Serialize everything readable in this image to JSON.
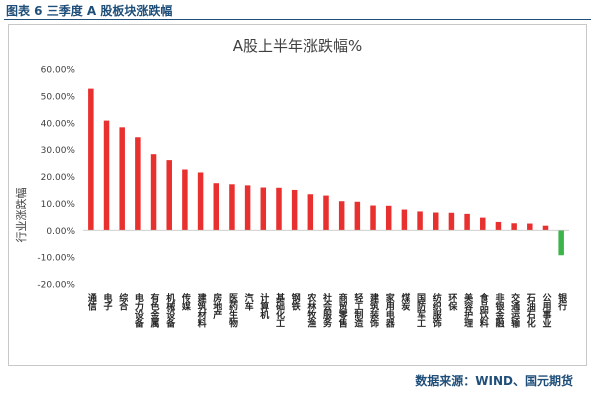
{
  "caption": "图表 6 三季度 A 股板块涨跌幅",
  "source": "数据来源：WIND、国元期货",
  "colors": {
    "positive": "#e8312f",
    "negative": "#3cb44b",
    "caption": "#1f4e79"
  },
  "chart_data": {
    "type": "bar",
    "title": "A股上半年涨跌幅%",
    "xlabel": "",
    "ylabel": "行业涨跌幅",
    "ylim": [
      -20,
      60
    ],
    "yticks": [
      60,
      50,
      40,
      30,
      20,
      10,
      0,
      -10,
      -20
    ],
    "yticks_labels": [
      "60.00%",
      "50.00%",
      "40.00%",
      "30.00%",
      "20.00%",
      "10.00%",
      "0.00%",
      "-10.00%",
      "-20.00%"
    ],
    "grid": false,
    "legend": "none",
    "categories": [
      "通信",
      "电子",
      "综合",
      "电力设备",
      "有色金属",
      "机械设备",
      "传媒",
      "建筑材料",
      "房地产",
      "医药生物",
      "汽车",
      "计算机",
      "基础化工",
      "钢铁",
      "农林牧渔",
      "社会服务",
      "商贸零售",
      "轻工制造",
      "建筑装饰",
      "家用电器",
      "煤炭",
      "国防军工",
      "纺织服饰",
      "环保",
      "美容护理",
      "食品饮料",
      "非银金融",
      "交通运输",
      "石油石化",
      "公用事业",
      "银行"
    ],
    "values": [
      52.7,
      40.8,
      38.3,
      34.6,
      28.3,
      26.1,
      22.6,
      21.5,
      17.5,
      17.1,
      16.7,
      15.9,
      15.8,
      15.0,
      13.4,
      12.9,
      10.8,
      10.6,
      9.2,
      9.1,
      7.7,
      7.0,
      6.6,
      6.5,
      6.1,
      4.7,
      3.1,
      2.6,
      2.5,
      1.7,
      -9.3
    ]
  }
}
